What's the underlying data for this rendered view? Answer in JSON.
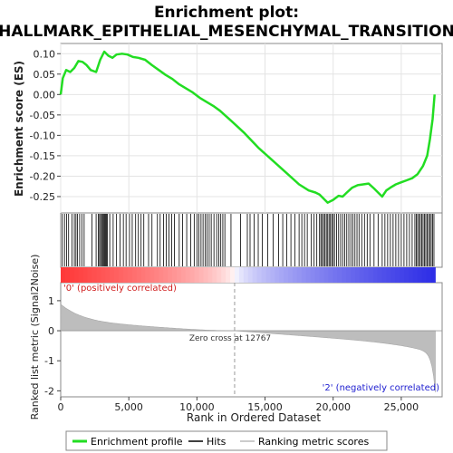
{
  "chart_data": {
    "type": "line",
    "title_line1": "Enrichment plot:",
    "title_line2": "HALLMARK_EPITHELIAL_MESENCHYMAL_TRANSITION",
    "xlabel": "Rank in Ordered Dataset",
    "es_ylabel": "Enrichment score (ES)",
    "metric_ylabel": "Ranked list metric (Signal2Noise)",
    "xlim": [
      0,
      28000
    ],
    "x_ticks": [
      0,
      5000,
      10000,
      15000,
      20000,
      25000
    ],
    "x_tick_labels": [
      "0",
      "5,000",
      "10,000",
      "15,000",
      "20,000",
      "25,000"
    ],
    "es_ylim": [
      -0.29,
      0.125
    ],
    "es_ticks": [
      0.1,
      0.05,
      0.0,
      -0.05,
      -0.1,
      -0.15,
      -0.2,
      -0.25
    ],
    "es_tick_labels": [
      "0.10",
      "0.05",
      "0.00",
      "-0.05",
      "-0.10",
      "-0.15",
      "-0.20",
      "-0.25"
    ],
    "metric_ylim": [
      -2.2,
      1.6
    ],
    "metric_ticks": [
      1,
      0,
      -1,
      -2
    ],
    "metric_tick_labels": [
      "1",
      "0",
      "-1",
      "-2"
    ],
    "zero_cross_rank": 12767,
    "zero_cross_label": "Zero cross at 12767",
    "pos_label": "'0' (positively correlated)",
    "neg_label": "'2' (negatively correlated)",
    "n_genes": 27500,
    "legend": [
      {
        "name": "Enrichment profile",
        "color": "#22dd22"
      },
      {
        "name": "Hits",
        "color": "#000000"
      },
      {
        "name": "Ranking metric scores",
        "color": "#bbbbbb"
      }
    ],
    "enrichment_profile": {
      "color": "#22dd22",
      "x": [
        0,
        150,
        400,
        700,
        1000,
        1300,
        1600,
        1900,
        2200,
        2600,
        2900,
        3200,
        3500,
        3800,
        4100,
        4500,
        4900,
        5300,
        5700,
        6200,
        6700,
        7200,
        7700,
        8200,
        8700,
        9200,
        9700,
        10200,
        10700,
        11200,
        11700,
        12200,
        12700,
        13500,
        14500,
        15500,
        16500,
        17500,
        18200,
        18700,
        19000,
        19300,
        19600,
        20000,
        20400,
        20700,
        21000,
        21400,
        21800,
        22200,
        22600,
        23000,
        23300,
        23600,
        23900,
        24200,
        24600,
        25000,
        25400,
        25800,
        26200,
        26600,
        26900,
        27100,
        27300,
        27450
      ],
      "y": [
        0.0,
        0.04,
        0.06,
        0.055,
        0.065,
        0.082,
        0.08,
        0.072,
        0.06,
        0.055,
        0.085,
        0.105,
        0.095,
        0.09,
        0.098,
        0.1,
        0.098,
        0.092,
        0.09,
        0.085,
        0.072,
        0.06,
        0.048,
        0.038,
        0.025,
        0.015,
        0.005,
        -0.008,
        -0.018,
        -0.028,
        -0.04,
        -0.055,
        -0.07,
        -0.095,
        -0.13,
        -0.16,
        -0.19,
        -0.22,
        -0.235,
        -0.24,
        -0.245,
        -0.255,
        -0.265,
        -0.258,
        -0.248,
        -0.25,
        -0.24,
        -0.228,
        -0.222,
        -0.22,
        -0.218,
        -0.23,
        -0.24,
        -0.25,
        -0.235,
        -0.228,
        -0.22,
        -0.215,
        -0.21,
        -0.205,
        -0.195,
        -0.175,
        -0.15,
        -0.11,
        -0.06,
        0.0
      ]
    },
    "hit_ranks": [
      120,
      280,
      430,
      580,
      820,
      1000,
      1120,
      1230,
      1390,
      1550,
      1720,
      2300,
      2600,
      2760,
      2850,
      2930,
      3010,
      3080,
      3150,
      3220,
      3290,
      3360,
      3430,
      3600,
      3850,
      4100,
      4350,
      4600,
      4800,
      5050,
      5250,
      5500,
      5700,
      5900,
      6100,
      6450,
      6700,
      7100,
      7300,
      7550,
      7750,
      7950,
      8150,
      8350,
      8700,
      8950,
      9250,
      9550,
      9800,
      10000,
      10150,
      10300,
      10450,
      10600,
      10750,
      10900,
      11050,
      11250,
      11450,
      11600,
      11750,
      11900,
      12050,
      12500,
      13200,
      13700,
      13900,
      14200,
      14500,
      14800,
      15200,
      15600,
      16000,
      16300,
      16600,
      16900,
      17200,
      17500,
      17700,
      17900,
      18100,
      18400,
      18600,
      18800,
      19000,
      19100,
      19200,
      19300,
      19400,
      19500,
      19600,
      19700,
      19800,
      19900,
      20000,
      20100,
      20250,
      20400,
      20550,
      20700,
      20850,
      21000,
      21150,
      21300,
      21450,
      21600,
      21750,
      21900,
      22100,
      22300,
      22500,
      22700,
      23000,
      23300,
      23600,
      23800,
      24000,
      24200,
      24400,
      24600,
      24800,
      25000,
      25200,
      25400,
      25600,
      25800,
      26000,
      26100,
      26200,
      26300,
      26400,
      26500,
      26600,
      26700,
      26800,
      26900,
      27000,
      27100,
      27200,
      27300,
      27400
    ]
  }
}
